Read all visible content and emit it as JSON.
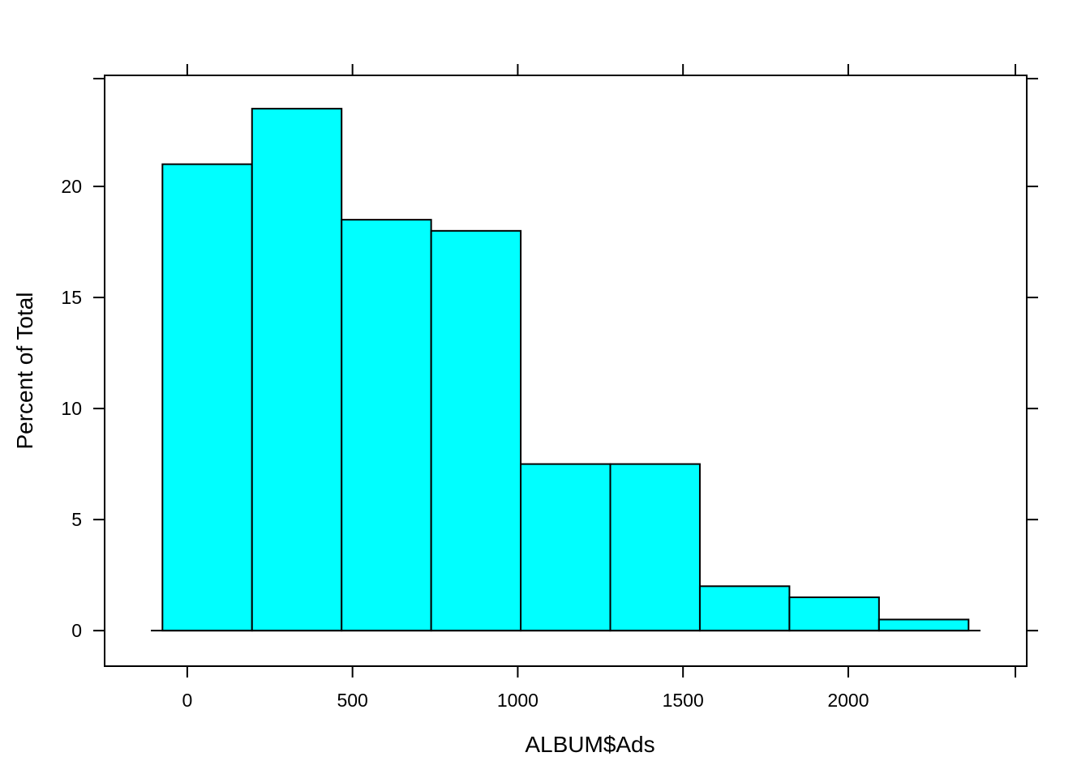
{
  "chart_data": {
    "type": "bar",
    "title": "",
    "xlabel": "ALBUM$Ads",
    "ylabel": "Percent of Total",
    "bins": [
      {
        "start": -75,
        "end": 196,
        "value": 21.0
      },
      {
        "start": 196,
        "end": 467,
        "value": 23.5
      },
      {
        "start": 467,
        "end": 738,
        "value": 18.5
      },
      {
        "start": 738,
        "end": 1009,
        "value": 18.0
      },
      {
        "start": 1009,
        "end": 1280,
        "value": 7.5
      },
      {
        "start": 1280,
        "end": 1551,
        "value": 7.5
      },
      {
        "start": 1551,
        "end": 1822,
        "value": 2.0
      },
      {
        "start": 1822,
        "end": 2093,
        "value": 1.5
      },
      {
        "start": 2093,
        "end": 2364,
        "value": 0.5
      }
    ],
    "xlim": [
      -250,
      2540
    ],
    "ylim": [
      -1.6,
      25.0
    ],
    "x_ticks": [
      0,
      500,
      1000,
      1500,
      2000
    ],
    "y_ticks": [
      0,
      5,
      10,
      15,
      20
    ],
    "baseline": {
      "from": -110,
      "to": 2400,
      "value": 0
    },
    "grid": false,
    "legend": "none",
    "colors": {
      "bar_fill": "#00FFFF",
      "bar_stroke": "#000000",
      "axis": "#000000"
    }
  }
}
